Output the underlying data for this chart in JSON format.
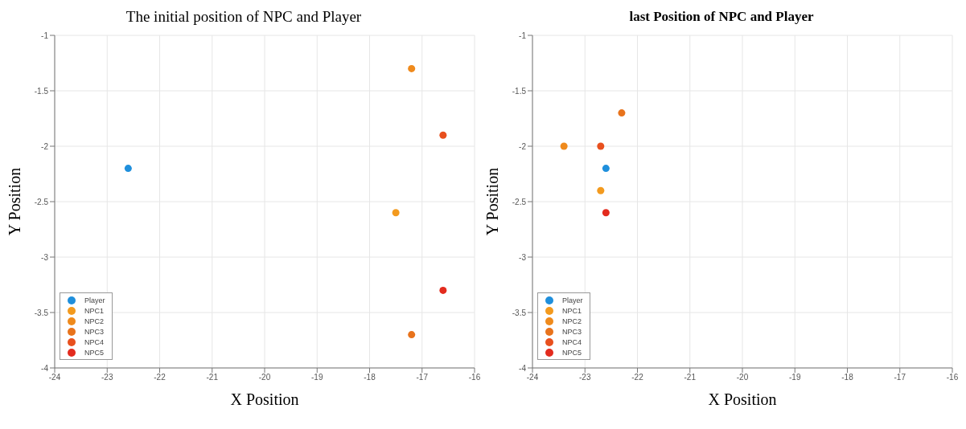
{
  "chart_data": [
    {
      "type": "scatter",
      "title": "The initial position of NPC and Player",
      "xlabel": "X Position",
      "ylabel": "Y Position",
      "xlim": [
        -24,
        -16
      ],
      "xticks": [
        -24,
        -23,
        -22,
        -21,
        -20,
        -19,
        -18,
        -17,
        -16
      ],
      "ylim": [
        -4,
        -1
      ],
      "yticks": [
        -4,
        -3.5,
        -3,
        -2.5,
        -2,
        -1.5,
        -1
      ],
      "grid": true,
      "legend": "bottom left",
      "marker": "circle",
      "series": [
        {
          "name": "Player",
          "color": "#1f8fdc",
          "x": [
            -22.6
          ],
          "values": [
            -2.2
          ]
        },
        {
          "name": "NPC1",
          "color": "#f39a1e",
          "x": [
            -17.5
          ],
          "values": [
            -2.6
          ]
        },
        {
          "name": "NPC2",
          "color": "#ef8a1c",
          "x": [
            -17.2
          ],
          "values": [
            -1.3
          ]
        },
        {
          "name": "NPC3",
          "color": "#e8731c",
          "x": [
            -17.2
          ],
          "values": [
            -3.7
          ]
        },
        {
          "name": "NPC4",
          "color": "#e8501e",
          "x": [
            -16.6
          ],
          "values": [
            -1.9
          ]
        },
        {
          "name": "NPC5",
          "color": "#e32b1e",
          "x": [
            -16.6
          ],
          "values": [
            -3.3
          ]
        }
      ]
    },
    {
      "type": "scatter",
      "title": "last Position of NPC and Player",
      "xlabel": "X Position",
      "ylabel": "Y Position",
      "xlim": [
        -24,
        -16
      ],
      "xticks": [
        -24,
        -23,
        -22,
        -21,
        -20,
        -19,
        -18,
        -17,
        -16
      ],
      "ylim": [
        -4,
        -1
      ],
      "yticks": [
        -4,
        -3.5,
        -3,
        -2.5,
        -2,
        -1.5,
        -1
      ],
      "grid": true,
      "legend": "bottom left",
      "marker": "circle",
      "series": [
        {
          "name": "Player",
          "color": "#1f8fdc",
          "x": [
            -22.6
          ],
          "values": [
            -2.2
          ]
        },
        {
          "name": "NPC1",
          "color": "#f39a1e",
          "x": [
            -22.7
          ],
          "values": [
            -2.4
          ]
        },
        {
          "name": "NPC2",
          "color": "#ef8a1c",
          "x": [
            -23.4
          ],
          "values": [
            -2.0
          ]
        },
        {
          "name": "NPC3",
          "color": "#e8731c",
          "x": [
            -22.3
          ],
          "values": [
            -1.7
          ]
        },
        {
          "name": "NPC4",
          "color": "#e8501e",
          "x": [
            -22.7
          ],
          "values": [
            -2.0
          ]
        },
        {
          "name": "NPC5",
          "color": "#e32b1e",
          "x": [
            -22.6
          ],
          "values": [
            -2.6
          ]
        }
      ]
    }
  ]
}
